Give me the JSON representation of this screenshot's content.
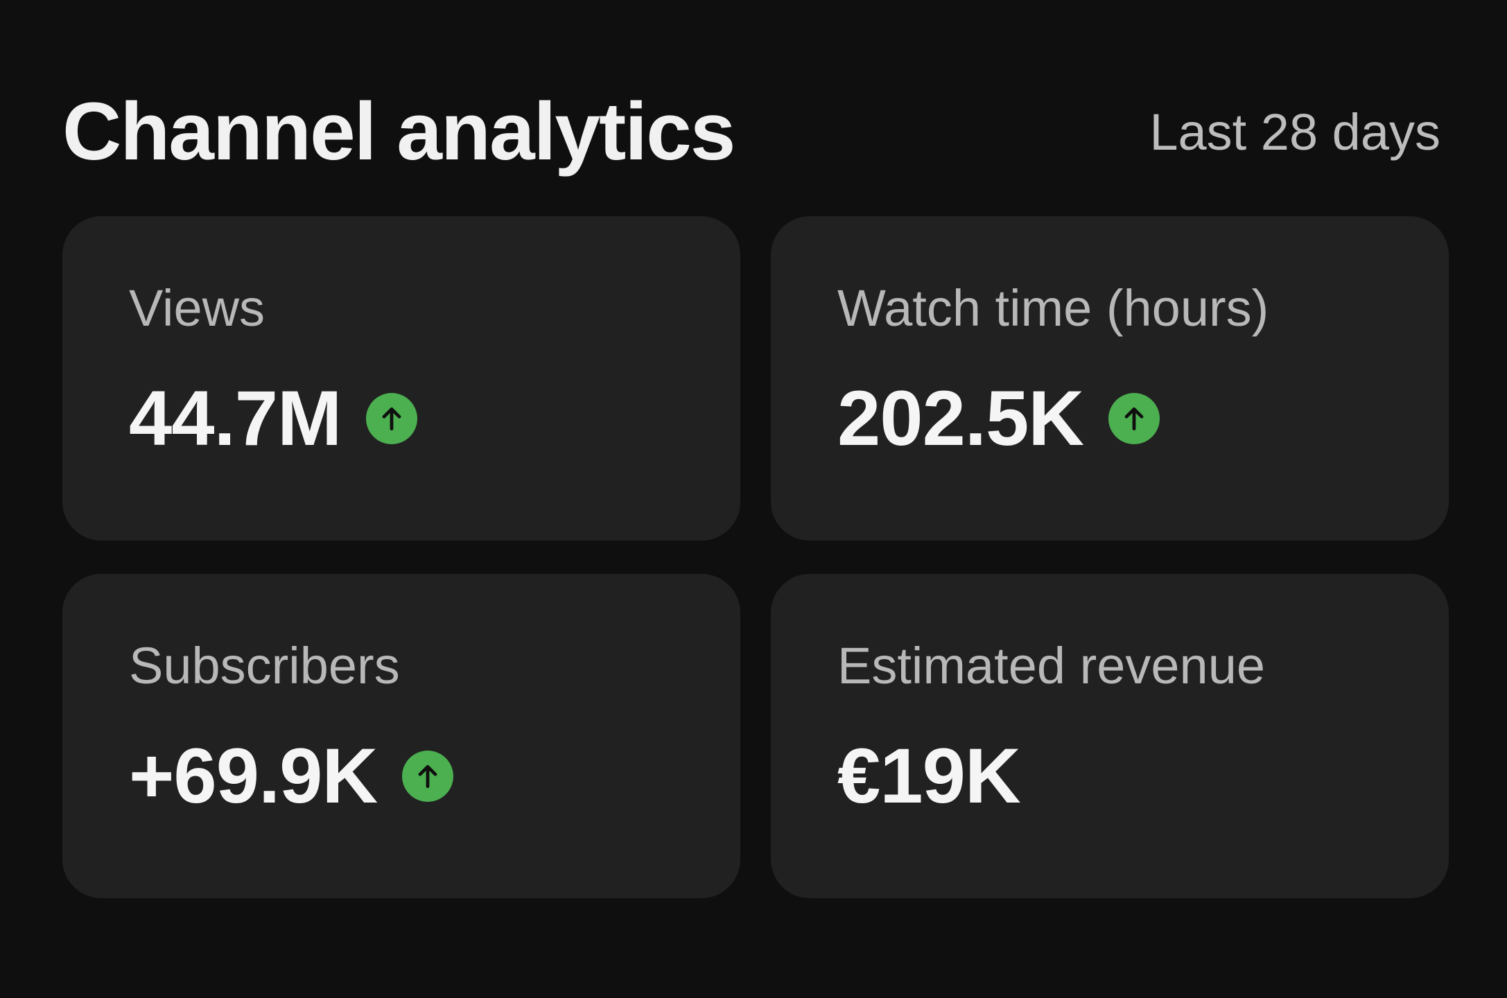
{
  "header": {
    "title": "Channel analytics",
    "date_range": "Last 28 days"
  },
  "cards": [
    {
      "label": "Views",
      "value": "44.7M",
      "trend": "up",
      "icon": "arrow-up-icon"
    },
    {
      "label": "Watch time (hours)",
      "value": "202.5K",
      "trend": "up",
      "icon": "arrow-up-icon"
    },
    {
      "label": "Subscribers",
      "value": "+69.9K",
      "trend": "up",
      "icon": "arrow-up-icon"
    },
    {
      "label": "Estimated revenue",
      "value": "€19K"
    }
  ],
  "colors": {
    "background": "#0f0f0f",
    "card": "#212121",
    "trend_up": "#4caf50",
    "label": "#b8b8b8",
    "value": "#f5f5f5"
  }
}
